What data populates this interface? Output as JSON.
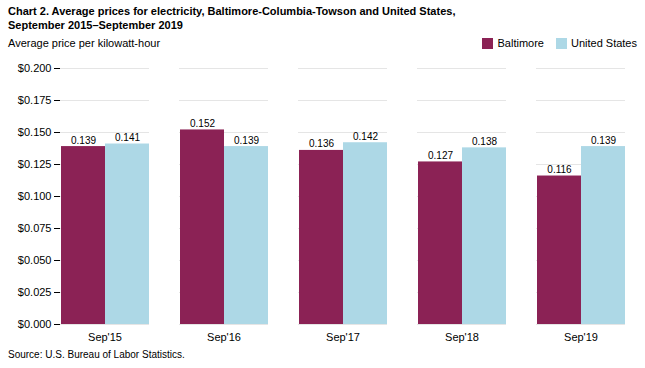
{
  "chart_data": {
    "type": "bar",
    "title": "Chart 2. Average prices for electricity, Baltimore-Columbia-Towson and United States,",
    "subtitle": "September 2015–September 2019",
    "ylabel": "Average price per kilowatt-hour",
    "source": "Source: U.S. Bureau of Labor Statistics.",
    "categories": [
      "Sep'15",
      "Sep'16",
      "Sep'17",
      "Sep'18",
      "Sep'19"
    ],
    "series": [
      {
        "name": "Baltimore",
        "color": "#8B2255",
        "values": [
          0.139,
          0.152,
          0.136,
          0.127,
          0.116
        ]
      },
      {
        "name": "United States",
        "color": "#ADD8E6",
        "values": [
          0.141,
          0.139,
          0.142,
          0.138,
          0.139
        ]
      }
    ],
    "ylim": [
      0,
      0.2
    ],
    "yticks": [
      {
        "value": 0,
        "label": "$0.000"
      },
      {
        "value": 0.025,
        "label": "$0.025"
      },
      {
        "value": 0.05,
        "label": "$0.050"
      },
      {
        "value": 0.075,
        "label": "$0.075"
      },
      {
        "value": 0.1,
        "label": "$0.100"
      },
      {
        "value": 0.125,
        "label": "$0.125"
      },
      {
        "value": 0.15,
        "label": "$0.150"
      },
      {
        "value": 0.175,
        "label": "$0.175"
      },
      {
        "value": 0.2,
        "label": "$0.200"
      }
    ],
    "grid": true,
    "legend": "upper right",
    "data_labels": true
  }
}
